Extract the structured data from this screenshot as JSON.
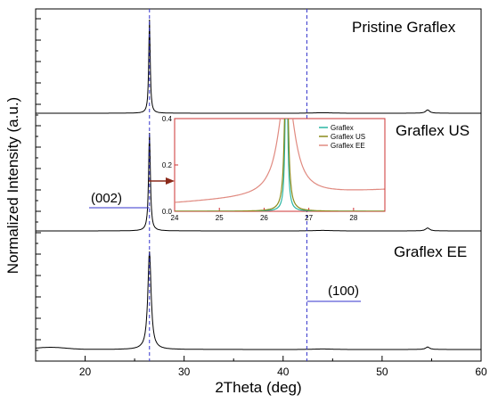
{
  "chart_data": {
    "type": "line",
    "xlabel": "2Theta (deg)",
    "ylabel": "Normalized Intensity (a.u.)",
    "xlim": [
      15,
      60
    ],
    "xticks": [
      20,
      30,
      40,
      50,
      60
    ],
    "grid": false,
    "series": [
      {
        "name": "Pristine Graflex",
        "color": "#000000",
        "peaks": [
          {
            "x": 26.5,
            "height": 1.0
          },
          {
            "x": 54.6,
            "height": 0.035
          }
        ]
      },
      {
        "name": "Graflex US",
        "color": "#000000",
        "peaks": [
          {
            "x": 26.5,
            "height": 1.0
          },
          {
            "x": 54.6,
            "height": 0.03
          }
        ]
      },
      {
        "name": "Graflex EE",
        "color": "#000000",
        "peaks": [
          {
            "x": 26.5,
            "height": 1.0
          },
          {
            "x": 54.6,
            "height": 0.025
          }
        ]
      }
    ],
    "reference_lines": [
      {
        "x": 26.5,
        "label": "(002)"
      },
      {
        "x": 42.4,
        "label": "(100)"
      }
    ],
    "inset": {
      "xlim": [
        24,
        28.7
      ],
      "ylim": [
        0,
        0.4
      ],
      "xticks": [
        24,
        25,
        26,
        27,
        28
      ],
      "yticks": [
        0.0,
        0.2,
        0.4
      ],
      "legend_position": "top-right",
      "series": [
        {
          "name": "Graflex",
          "color": "#2bb5a3",
          "center": 26.5,
          "width": 0.11,
          "base": 0.0
        },
        {
          "name": "Graflex US",
          "color": "#8a8a1a",
          "center": 26.5,
          "width": 0.16,
          "base": 0.0
        },
        {
          "name": "Graflex EE",
          "color": "#e08a80",
          "center": 26.5,
          "width": 0.45,
          "base": 0.035
        }
      ]
    }
  }
}
